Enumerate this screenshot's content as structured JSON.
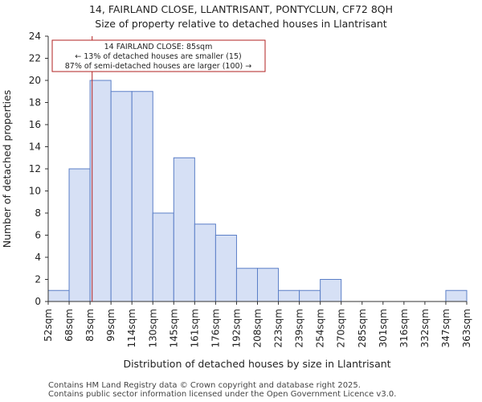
{
  "chart_data": {
    "type": "bar",
    "title_line1": "14, FAIRLAND CLOSE, LLANTRISANT, PONTYCLUN, CF72 8QH",
    "title_line2": "Size of property relative to detached houses in Llantrisant",
    "xlabel": "Distribution of detached houses by size in Llantrisant",
    "ylabel": "Number of detached properties",
    "ylim": [
      0,
      24
    ],
    "yticks": [
      0,
      2,
      4,
      6,
      8,
      10,
      12,
      14,
      16,
      18,
      20,
      22,
      24
    ],
    "bin_edges": [
      "52sqm",
      "68sqm",
      "83sqm",
      "99sqm",
      "114sqm",
      "130sqm",
      "145sqm",
      "161sqm",
      "176sqm",
      "192sqm",
      "208sqm",
      "223sqm",
      "239sqm",
      "254sqm",
      "270sqm",
      "285sqm",
      "301sqm",
      "316sqm",
      "332sqm",
      "347sqm",
      "363sqm"
    ],
    "values": [
      1,
      12,
      20,
      19,
      19,
      8,
      13,
      7,
      6,
      3,
      3,
      1,
      1,
      2,
      0,
      0,
      0,
      0,
      0,
      1
    ],
    "bar_color": "#d6e0f5",
    "bar_edge_color": "#5b7fc7",
    "marker": {
      "value_bin_position": 2.1,
      "color": "#b22222",
      "annotation": [
        "14 FAIRLAND CLOSE: 85sqm",
        "← 13% of detached houses are smaller (15)",
        "87% of semi-detached houses are larger (100) →"
      ]
    }
  },
  "footer": {
    "line1": "Contains HM Land Registry data © Crown copyright and database right 2025.",
    "line2": "Contains public sector information licensed under the Open Government Licence v3.0."
  }
}
